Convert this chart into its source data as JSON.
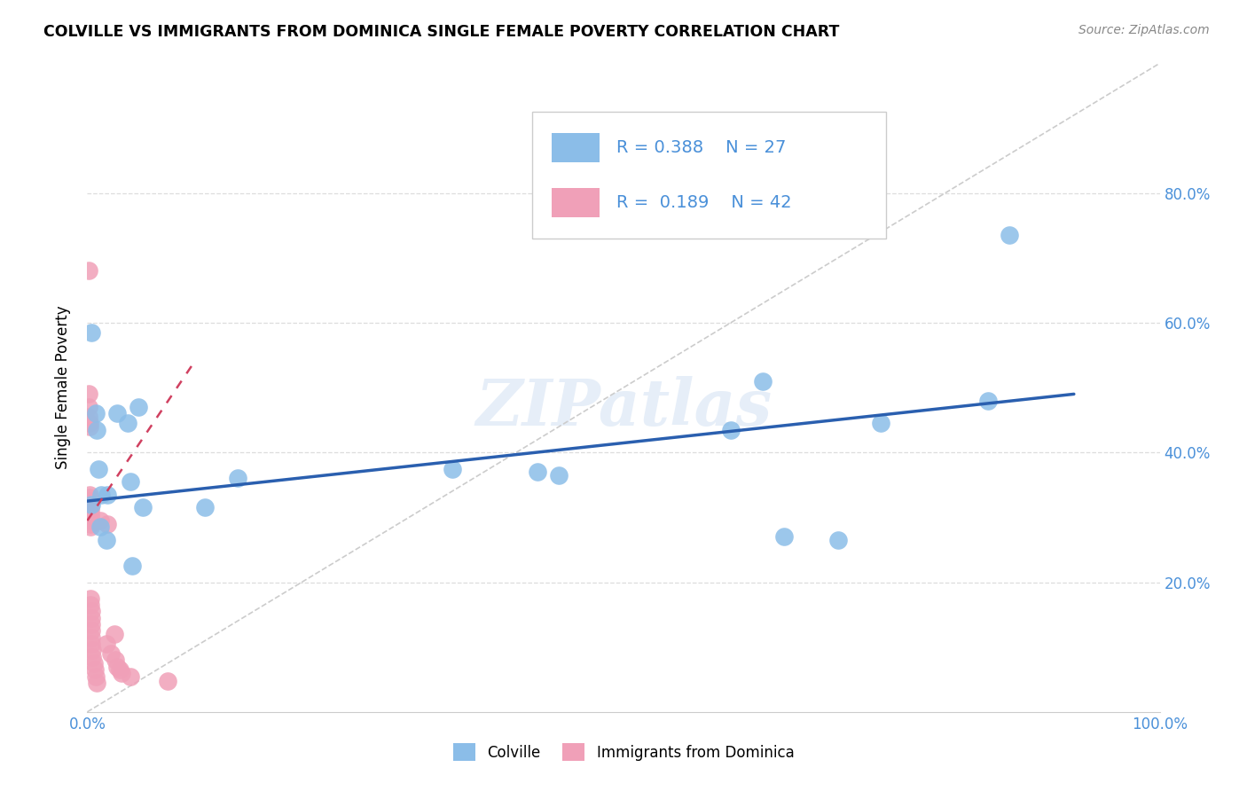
{
  "title": "COLVILLE VS IMMIGRANTS FROM DOMINICA SINGLE FEMALE POVERTY CORRELATION CHART",
  "source": "Source: ZipAtlas.com",
  "tick_color": "#4a90d9",
  "ylabel": "Single Female Poverty",
  "xlim": [
    0,
    1.0
  ],
  "ylim": [
    0,
    1.0
  ],
  "xtick_positions": [
    0.0,
    0.1,
    0.2,
    0.3,
    0.4,
    0.5,
    0.6,
    0.7,
    0.8,
    0.9,
    1.0
  ],
  "xtick_labels_visible": {
    "0.0": "0.0%",
    "1.0": "100.0%"
  },
  "ytick_positions": [
    0.2,
    0.4,
    0.6,
    0.8
  ],
  "ytick_labels": [
    "20.0%",
    "40.0%",
    "60.0%",
    "80.0%"
  ],
  "blue_color": "#8bbde8",
  "pink_color": "#f0a0b8",
  "blue_line_color": "#2a5faf",
  "pink_line_color": "#d04060",
  "diagonal_color": "#cccccc",
  "watermark": "ZIPatlas",
  "legend_R1": "0.388",
  "legend_N1": "27",
  "legend_R2": "0.189",
  "legend_N2": "42",
  "legend_label1": "Colville",
  "legend_label2": "Immigrants from Dominica",
  "blue_scatter_x": [
    0.004,
    0.004,
    0.008,
    0.009,
    0.01,
    0.012,
    0.013,
    0.018,
    0.019,
    0.028,
    0.038,
    0.04,
    0.042,
    0.048,
    0.052,
    0.11,
    0.14,
    0.34,
    0.42,
    0.44,
    0.6,
    0.63,
    0.65,
    0.7,
    0.74,
    0.84,
    0.86
  ],
  "blue_scatter_y": [
    0.585,
    0.32,
    0.46,
    0.435,
    0.375,
    0.285,
    0.335,
    0.265,
    0.335,
    0.46,
    0.445,
    0.355,
    0.225,
    0.47,
    0.315,
    0.315,
    0.36,
    0.375,
    0.37,
    0.365,
    0.435,
    0.51,
    0.27,
    0.265,
    0.445,
    0.48,
    0.735
  ],
  "pink_scatter_x": [
    0.001,
    0.001,
    0.001,
    0.001,
    0.002,
    0.002,
    0.002,
    0.002,
    0.002,
    0.002,
    0.003,
    0.003,
    0.003,
    0.003,
    0.003,
    0.003,
    0.003,
    0.003,
    0.003,
    0.004,
    0.004,
    0.004,
    0.004,
    0.004,
    0.004,
    0.005,
    0.005,
    0.006,
    0.007,
    0.008,
    0.009,
    0.012,
    0.018,
    0.019,
    0.022,
    0.025,
    0.026,
    0.028,
    0.03,
    0.032,
    0.04,
    0.075
  ],
  "pink_scatter_y": [
    0.68,
    0.49,
    0.47,
    0.455,
    0.445,
    0.44,
    0.335,
    0.33,
    0.325,
    0.32,
    0.315,
    0.31,
    0.305,
    0.3,
    0.295,
    0.29,
    0.285,
    0.175,
    0.165,
    0.155,
    0.145,
    0.135,
    0.125,
    0.115,
    0.105,
    0.095,
    0.085,
    0.075,
    0.065,
    0.055,
    0.045,
    0.295,
    0.105,
    0.29,
    0.09,
    0.12,
    0.08,
    0.07,
    0.065,
    0.06,
    0.055,
    0.048
  ],
  "blue_regline_x": [
    0.0,
    0.92
  ],
  "blue_regline_y_start": 0.325,
  "blue_regline_y_end": 0.49,
  "pink_regline_x": [
    0.0,
    0.1
  ],
  "pink_regline_y_start": 0.295,
  "pink_regline_y_end": 0.54
}
